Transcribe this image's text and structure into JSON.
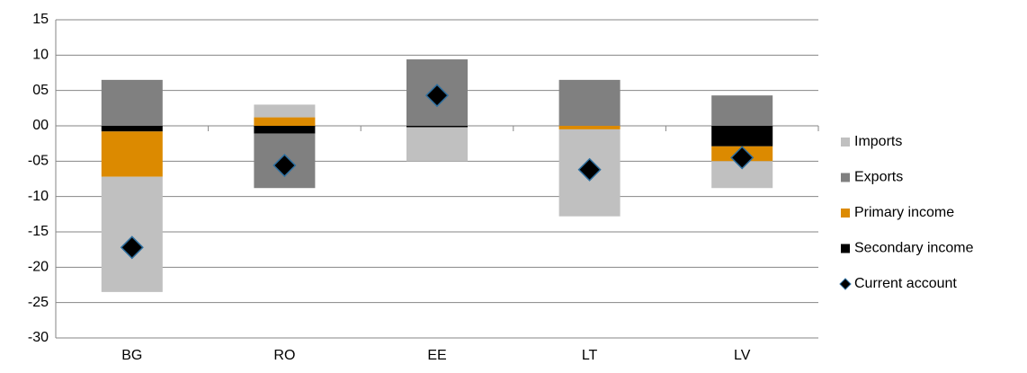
{
  "chart_data": {
    "type": "bar",
    "stacked": true,
    "categories": [
      "BG",
      "RO",
      "EE",
      "LT",
      "LV"
    ],
    "series": [
      {
        "name": "Imports",
        "type": "bar",
        "color": "#c0c0c0",
        "values": [
          -16.3,
          1.8,
          -4.8,
          -12.3,
          -3.8
        ]
      },
      {
        "name": "Exports",
        "type": "bar",
        "color": "#808080",
        "values": [
          6.5,
          -7.7,
          9.4,
          6.5,
          4.3
        ]
      },
      {
        "name": "Primary income",
        "type": "bar",
        "color": "#dc8a00",
        "values": [
          -6.4,
          1.2,
          0,
          -0.5,
          -2.1
        ]
      },
      {
        "name": "Secondary income",
        "type": "bar",
        "color": "#000000",
        "values": [
          -0.8,
          -1.1,
          -0.2,
          0,
          -2.9
        ]
      },
      {
        "name": "Current account",
        "type": "scatter",
        "color": "#000000",
        "values": [
          -17.2,
          -5.6,
          4.3,
          -6.2,
          -4.5
        ]
      }
    ],
    "ylim": [
      -30,
      15
    ],
    "yticks": [
      15,
      10,
      {
        "value": 5,
        "label": "05"
      },
      {
        "value": 0,
        "label": "00"
      },
      {
        "value": -5,
        "label": "-05"
      },
      -10,
      -15,
      -20,
      -25,
      -30
    ],
    "grid": true,
    "legend": "right"
  }
}
